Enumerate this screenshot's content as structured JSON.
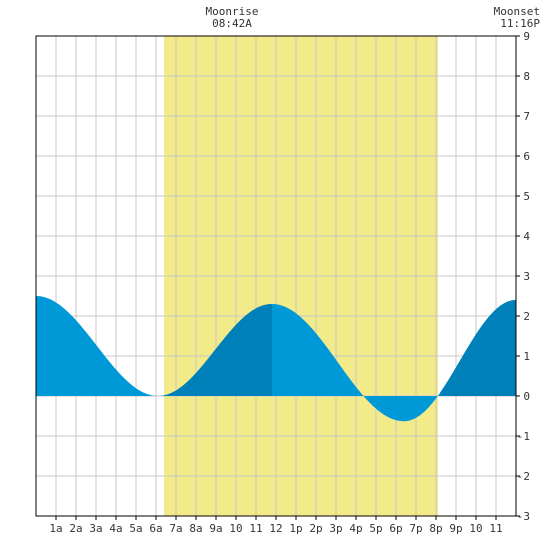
{
  "chart_data": {
    "type": "area",
    "title": "",
    "xlabel": "",
    "ylabel": "",
    "x_ticks": [
      "1a",
      "2a",
      "3a",
      "4a",
      "5a",
      "6a",
      "7a",
      "8a",
      "9a",
      "10",
      "11",
      "12",
      "1p",
      "2p",
      "3p",
      "4p",
      "5p",
      "6p",
      "7p",
      "8p",
      "9p",
      "10",
      "11"
    ],
    "y_ticks": [
      "-3",
      "-2",
      "-1",
      "0",
      "1",
      "2",
      "3",
      "4",
      "5",
      "6",
      "7",
      "8",
      "9"
    ],
    "xlim": [
      0,
      24
    ],
    "ylim": [
      -3,
      9
    ],
    "grid": true,
    "daylight": {
      "start_hour": 6.4,
      "end_hour": 20.1
    },
    "tide_points": [
      {
        "hour": 0.0,
        "height": 2.5
      },
      {
        "hour": 6.1,
        "height": 0.0
      },
      {
        "hour": 11.8,
        "height": 2.3
      },
      {
        "hour": 18.4,
        "height": -0.63
      },
      {
        "hour": 24.0,
        "height": 2.4
      }
    ],
    "dark_fill_segments": [
      {
        "from_hour": 6.1,
        "to_hour": 11.8
      },
      {
        "from_hour": 20.2,
        "to_hour": 24.0
      }
    ],
    "colors": {
      "water": "#0099d8",
      "water_dark": "#0080b8",
      "daylight": "#f3ea8a",
      "grid": "#c8c8c8",
      "axis": "#000000"
    }
  },
  "annotations": {
    "moonrise_label": "Moonrise",
    "moonrise_time": "08:42A",
    "moonset_label": "Moonset",
    "moonset_time": "11:16P"
  }
}
